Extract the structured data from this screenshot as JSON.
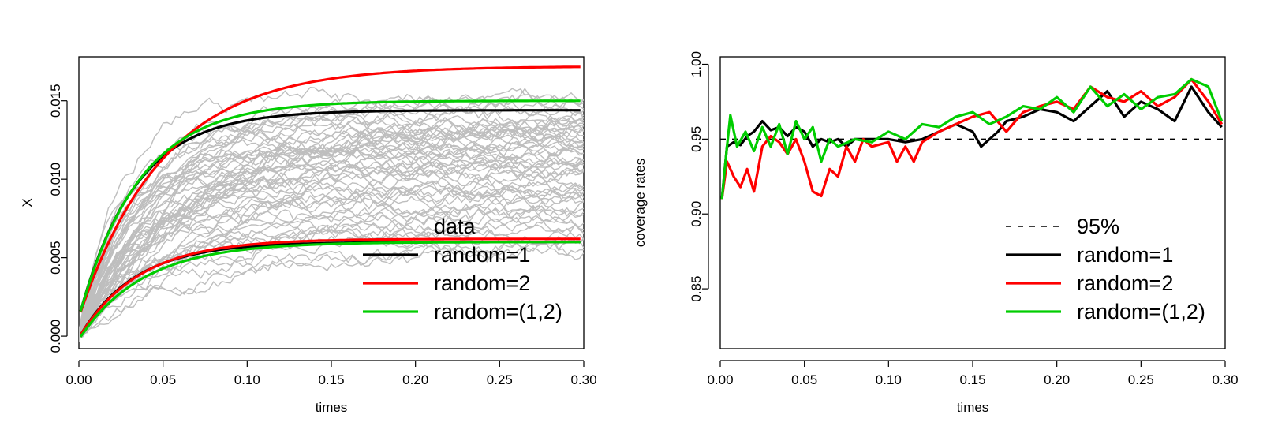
{
  "chart_data": [
    {
      "type": "line",
      "title": "",
      "xlabel": "times",
      "ylabel": "X",
      "xlim": [
        0,
        0.3
      ],
      "ylim": [
        -0.0008,
        0.0178
      ],
      "xticks": [
        "0.00",
        "0.05",
        "0.10",
        "0.15",
        "0.20",
        "0.25",
        "0.30"
      ],
      "yticks": [
        "0.000",
        "0.005",
        "0.010",
        "0.015"
      ],
      "grid": false,
      "legend": {
        "position": "bottom-right",
        "entries": [
          {
            "label": "data",
            "color": "#bebebe",
            "style": "none"
          },
          {
            "label": "random=1",
            "color": "#000000",
            "style": "solid"
          },
          {
            "label": "random=2",
            "color": "#ff0000",
            "style": "solid"
          },
          {
            "label": "random=(1,2)",
            "color": "#00cd00",
            "style": "solid"
          }
        ]
      },
      "data_band": {
        "color": "#bebebe",
        "path_count": 60,
        "x_range": [
          0,
          0.3
        ],
        "lower_plateau": 0.005,
        "upper_plateau": 0.0152
      },
      "curves": [
        {
          "legend": "random=1",
          "color": "#000000",
          "bound": "upper",
          "start": 0.0012,
          "plateau": 0.0144,
          "rate": 30
        },
        {
          "legend": "random=1",
          "color": "#000000",
          "bound": "lower",
          "start": -0.0001,
          "plateau": 0.006,
          "rate": 30
        },
        {
          "legend": "random=2",
          "color": "#ff0000",
          "bound": "upper",
          "start": 0.0012,
          "plateau": 0.0172,
          "rate": 20
        },
        {
          "legend": "random=2",
          "color": "#ff0000",
          "bound": "lower",
          "start": -0.0001,
          "plateau": 0.0062,
          "rate": 28
        },
        {
          "legend": "random=(1,2)",
          "color": "#00cd00",
          "bound": "upper",
          "start": 0.0012,
          "plateau": 0.015,
          "rate": 28
        },
        {
          "legend": "random=(1,2)",
          "color": "#00cd00",
          "bound": "lower",
          "start": -0.0002,
          "plateau": 0.006,
          "rate": 26
        }
      ]
    },
    {
      "type": "line",
      "title": "",
      "xlabel": "times",
      "ylabel": "coverage rates",
      "xlim": [
        0,
        0.3
      ],
      "ylim": [
        0.81,
        1.005
      ],
      "xticks": [
        "0.00",
        "0.05",
        "0.10",
        "0.15",
        "0.20",
        "0.25",
        "0.30"
      ],
      "yticks": [
        "0.85",
        "0.90",
        "0.95",
        "1.00"
      ],
      "grid": false,
      "reference_line": {
        "y": 0.95,
        "label": "95%",
        "style": "dashed",
        "color": "#000000"
      },
      "legend": {
        "position": "bottom-right",
        "entries": [
          {
            "label": "95%",
            "color": "#000000",
            "style": "dashed"
          },
          {
            "label": "random=1",
            "color": "#000000",
            "style": "solid"
          },
          {
            "label": "random=2",
            "color": "#ff0000",
            "style": "solid"
          },
          {
            "label": "random=(1,2)",
            "color": "#00cd00",
            "style": "solid"
          }
        ]
      },
      "series": [
        {
          "name": "random=1",
          "color": "#000000",
          "x": [
            0.001,
            0.004,
            0.008,
            0.012,
            0.016,
            0.02,
            0.025,
            0.03,
            0.035,
            0.04,
            0.045,
            0.05,
            0.055,
            0.06,
            0.065,
            0.07,
            0.075,
            0.08,
            0.09,
            0.1,
            0.11,
            0.12,
            0.13,
            0.14,
            0.15,
            0.155,
            0.16,
            0.165,
            0.17,
            0.18,
            0.19,
            0.2,
            0.21,
            0.22,
            0.23,
            0.24,
            0.25,
            0.26,
            0.27,
            0.28,
            0.29,
            0.298
          ],
          "y": [
            0.91,
            0.945,
            0.948,
            0.946,
            0.952,
            0.955,
            0.962,
            0.956,
            0.958,
            0.952,
            0.958,
            0.955,
            0.945,
            0.95,
            0.948,
            0.95,
            0.945,
            0.95,
            0.95,
            0.95,
            0.948,
            0.95,
            0.955,
            0.96,
            0.955,
            0.945,
            0.95,
            0.955,
            0.962,
            0.965,
            0.97,
            0.968,
            0.962,
            0.972,
            0.982,
            0.965,
            0.975,
            0.97,
            0.962,
            0.985,
            0.968,
            0.958
          ]
        },
        {
          "name": "random=2",
          "color": "#ff0000",
          "x": [
            0.001,
            0.004,
            0.008,
            0.012,
            0.016,
            0.02,
            0.025,
            0.03,
            0.035,
            0.04,
            0.045,
            0.05,
            0.055,
            0.06,
            0.065,
            0.07,
            0.075,
            0.08,
            0.085,
            0.09,
            0.1,
            0.105,
            0.11,
            0.115,
            0.12,
            0.13,
            0.14,
            0.15,
            0.16,
            0.17,
            0.18,
            0.19,
            0.2,
            0.21,
            0.22,
            0.23,
            0.24,
            0.25,
            0.26,
            0.27,
            0.28,
            0.29,
            0.298
          ],
          "y": [
            0.91,
            0.935,
            0.925,
            0.918,
            0.93,
            0.915,
            0.945,
            0.952,
            0.948,
            0.94,
            0.95,
            0.935,
            0.915,
            0.912,
            0.93,
            0.925,
            0.945,
            0.935,
            0.95,
            0.945,
            0.948,
            0.935,
            0.945,
            0.935,
            0.948,
            0.955,
            0.96,
            0.965,
            0.968,
            0.955,
            0.968,
            0.972,
            0.975,
            0.97,
            0.985,
            0.978,
            0.975,
            0.982,
            0.972,
            0.978,
            0.99,
            0.975,
            0.96
          ]
        },
        {
          "name": "random=(1,2)",
          "color": "#00cd00",
          "x": [
            0.001,
            0.004,
            0.006,
            0.01,
            0.015,
            0.02,
            0.025,
            0.03,
            0.035,
            0.04,
            0.045,
            0.05,
            0.055,
            0.06,
            0.065,
            0.07,
            0.08,
            0.09,
            0.1,
            0.11,
            0.12,
            0.13,
            0.14,
            0.15,
            0.16,
            0.17,
            0.18,
            0.19,
            0.2,
            0.21,
            0.22,
            0.23,
            0.24,
            0.25,
            0.26,
            0.27,
            0.28,
            0.29,
            0.298
          ],
          "y": [
            0.91,
            0.945,
            0.966,
            0.945,
            0.955,
            0.942,
            0.958,
            0.945,
            0.96,
            0.94,
            0.962,
            0.95,
            0.958,
            0.935,
            0.95,
            0.945,
            0.95,
            0.948,
            0.955,
            0.95,
            0.96,
            0.958,
            0.965,
            0.968,
            0.96,
            0.965,
            0.972,
            0.97,
            0.978,
            0.968,
            0.985,
            0.972,
            0.98,
            0.97,
            0.978,
            0.98,
            0.99,
            0.985,
            0.962
          ]
        }
      ]
    }
  ]
}
